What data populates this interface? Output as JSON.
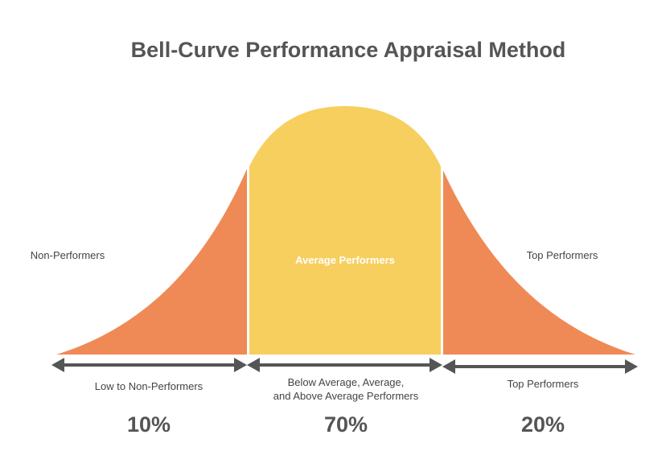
{
  "title": "Bell-Curve Performance Appraisal Method",
  "colors": {
    "orange": "#EF8A56",
    "yellow": "#F6CF5E",
    "dark": "#555555",
    "white": "#ffffff"
  },
  "segments": [
    {
      "label": "Non-Performers",
      "range_label": "Low to Non-Performers",
      "percent": "10%"
    },
    {
      "label": "Average Performers",
      "range_label_line1": "Below Average, Average,",
      "range_label_line2": "and Above Average Performers",
      "percent": "70%"
    },
    {
      "label": "Top Performers",
      "range_label": "Top Performers",
      "percent": "20%"
    }
  ]
}
